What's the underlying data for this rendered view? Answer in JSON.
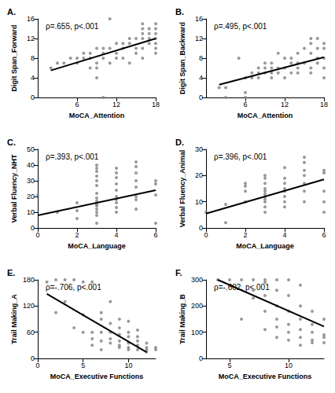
{
  "chart_data": [
    {
      "type": "scatter",
      "title": "A.",
      "annotation": "ρ=.655, p<.001",
      "x_label": "MoCA_Attention",
      "y_label": "Digit Span_Forward",
      "xlim": [
        0,
        18
      ],
      "xticks": [
        6,
        12,
        18
      ],
      "ylim": [
        0,
        16
      ],
      "yticks": [
        0,
        4,
        8,
        12,
        16
      ],
      "grid": false,
      "series": [
        {
          "type": "scatter",
          "color": "#808080",
          "x": [
            2,
            3,
            4,
            5,
            6,
            6,
            7,
            7,
            8,
            8,
            8,
            9,
            9,
            9,
            9,
            10,
            10,
            10,
            10,
            11,
            11,
            11,
            12,
            12,
            12,
            13,
            13,
            13,
            14,
            14,
            14,
            15,
            15,
            15,
            16,
            16,
            16,
            16,
            16,
            16,
            17,
            17,
            17,
            17,
            18,
            18,
            18,
            18,
            18,
            18,
            18
          ],
          "values": [
            6,
            7,
            7,
            8,
            8,
            7,
            8,
            9,
            8,
            6,
            9,
            10,
            6,
            4,
            7,
            9,
            10,
            0,
            8,
            10,
            7,
            16,
            11,
            9,
            8,
            10,
            11,
            8,
            11,
            12,
            7,
            10,
            12,
            9,
            13,
            14,
            15,
            12,
            10,
            8,
            12,
            14,
            11,
            13,
            12,
            13,
            14,
            15,
            9,
            11,
            10
          ]
        },
        {
          "type": "line",
          "color": "#000000",
          "x": [
            2,
            18
          ],
          "values": [
            5.5,
            12
          ]
        }
      ]
    },
    {
      "type": "scatter",
      "title": "B.",
      "annotation": "ρ=.495, p<.001",
      "x_label": "MoCA_Attention",
      "y_label": "Digit Span_Backward",
      "xlim": [
        0,
        18
      ],
      "xticks": [
        6,
        12,
        18
      ],
      "ylim": [
        0,
        16
      ],
      "yticks": [
        0,
        4,
        8,
        12,
        16
      ],
      "grid": false,
      "series": [
        {
          "type": "scatter",
          "color": "#808080",
          "x": [
            2,
            3,
            3,
            5,
            6,
            6,
            6,
            7,
            7,
            8,
            8,
            8,
            9,
            9,
            9,
            10,
            10,
            10,
            10,
            11,
            11,
            11,
            12,
            12,
            12,
            13,
            13,
            13,
            14,
            14,
            14,
            14,
            15,
            15,
            16,
            16,
            16,
            16,
            16,
            17,
            17,
            17,
            17,
            18,
            18,
            18,
            18,
            18
          ],
          "values": [
            2,
            2,
            0,
            8,
            4,
            1,
            0,
            4,
            5,
            5,
            6,
            4,
            5,
            6,
            7,
            6,
            5,
            4,
            7,
            5,
            6,
            9,
            4,
            6,
            8,
            5,
            7,
            8,
            6,
            7,
            5,
            9,
            10,
            7,
            9,
            6,
            12,
            11,
            5,
            10,
            8,
            7,
            12,
            8,
            10,
            11,
            6,
            4
          ]
        },
        {
          "type": "line",
          "color": "#000000",
          "x": [
            2,
            18
          ],
          "values": [
            2.6,
            8.2
          ]
        }
      ]
    },
    {
      "type": "scatter",
      "title": "C.",
      "annotation": "ρ=.393, p<.001",
      "x_label": "MoCA_Language",
      "y_label": "Verbal Fluency_NHT",
      "xlim": [
        0,
        6
      ],
      "xticks": [
        0,
        2,
        4,
        6
      ],
      "ylim": [
        0,
        50
      ],
      "yticks": [
        0,
        10,
        20,
        30,
        40,
        50
      ],
      "grid": false,
      "series": [
        {
          "type": "scatter",
          "color": "#808080",
          "x": [
            0,
            1,
            2,
            2,
            2,
            3,
            3,
            3,
            3,
            3,
            3,
            3,
            3,
            3,
            3,
            3,
            3,
            3,
            3,
            3,
            4,
            4,
            4,
            4,
            4,
            4,
            4,
            4,
            4,
            4,
            5,
            5,
            5,
            5,
            5,
            5,
            5,
            5,
            6,
            6,
            6,
            6
          ],
          "values": [
            21,
            10,
            6,
            16,
            11,
            3,
            8,
            10,
            12,
            14,
            15,
            17,
            19,
            22,
            27,
            30,
            33,
            36,
            38,
            40,
            10,
            13,
            16,
            18,
            20,
            24,
            28,
            32,
            35,
            38,
            12,
            18,
            20,
            26,
            30,
            35,
            39,
            42,
            3,
            21,
            28,
            30
          ]
        },
        {
          "type": "line",
          "color": "#000000",
          "x": [
            0,
            6
          ],
          "values": [
            8,
            24
          ]
        }
      ]
    },
    {
      "type": "scatter",
      "title": "D.",
      "annotation": "ρ=.396, p<.001",
      "x_label": "MoCA_Language",
      "y_label": "Verbal Fluency_Animal",
      "xlim": [
        0,
        6
      ],
      "xticks": [
        0,
        2,
        4,
        6
      ],
      "ylim": [
        0,
        30
      ],
      "yticks": [
        0,
        10,
        20,
        30
      ],
      "grid": false,
      "series": [
        {
          "type": "scatter",
          "color": "#808080",
          "x": [
            0,
            1,
            1,
            2,
            2,
            2,
            2,
            3,
            3,
            3,
            3,
            3,
            3,
            3,
            3,
            3,
            3,
            3,
            4,
            4,
            4,
            4,
            4,
            4,
            4,
            4,
            5,
            5,
            5,
            5,
            5,
            5,
            5,
            6,
            6,
            6,
            6,
            6
          ],
          "values": [
            6,
            2,
            9,
            10,
            14,
            16,
            17,
            6,
            8,
            10,
            11,
            12,
            13,
            14,
            15,
            17,
            19,
            20,
            8,
            10,
            12,
            14,
            15,
            17,
            19,
            23,
            10,
            14,
            17,
            20,
            22,
            25,
            27,
            6,
            10,
            14,
            21,
            22
          ]
        },
        {
          "type": "line",
          "color": "#000000",
          "x": [
            0,
            6
          ],
          "values": [
            5.5,
            18.5
          ]
        }
      ]
    },
    {
      "type": "scatter",
      "title": "E.",
      "annotation": "ρ=-.706, p<.001",
      "x_label": "MoCA_Executive Functions",
      "y_label": "Trail Making_A",
      "xlim": [
        0,
        13
      ],
      "xticks": [
        0,
        5,
        10
      ],
      "ylim": [
        0,
        180
      ],
      "yticks": [
        0,
        60,
        120,
        180
      ],
      "grid": false,
      "series": [
        {
          "type": "scatter",
          "color": "#808080",
          "x": [
            1,
            2,
            2,
            3,
            3,
            4,
            4,
            5,
            5,
            5,
            6,
            6,
            6,
            6,
            7,
            7,
            7,
            7,
            7,
            8,
            8,
            8,
            8,
            8,
            9,
            9,
            9,
            9,
            9,
            9,
            10,
            10,
            10,
            10,
            10,
            10,
            11,
            11,
            11,
            11,
            11,
            12,
            12,
            12,
            12,
            13,
            13
          ],
          "values": [
            175,
            180,
            105,
            130,
            180,
            180,
            70,
            60,
            100,
            175,
            175,
            60,
            45,
            30,
            90,
            105,
            40,
            20,
            60,
            80,
            60,
            45,
            35,
            130,
            70,
            55,
            40,
            30,
            25,
            90,
            60,
            50,
            35,
            25,
            20,
            85,
            50,
            40,
            30,
            20,
            65,
            25,
            20,
            15,
            35,
            25,
            20
          ]
        },
        {
          "type": "line",
          "color": "#000000",
          "x": [
            1,
            12
          ],
          "values": [
            148,
            14
          ]
        }
      ]
    },
    {
      "type": "scatter",
      "title": "F.",
      "annotation": "ρ=-.602, p<.001",
      "x_label": "MoCA_Executive Functions",
      "y_label": "Trail Making_B",
      "xlim": [
        3,
        13
      ],
      "xticks": [
        5,
        10
      ],
      "ylim": [
        0,
        300
      ],
      "yticks": [
        0,
        100,
        200,
        300
      ],
      "grid": false,
      "series": [
        {
          "type": "scatter",
          "color": "#808080",
          "x": [
            4,
            5,
            6,
            6,
            7,
            7,
            7,
            8,
            8,
            8,
            8,
            8,
            9,
            9,
            9,
            9,
            9,
            9,
            10,
            10,
            10,
            10,
            10,
            10,
            11,
            11,
            11,
            11,
            11,
            11,
            12,
            12,
            12,
            12,
            12,
            13,
            13,
            13,
            13
          ],
          "values": [
            300,
            300,
            150,
            300,
            300,
            260,
            230,
            300,
            290,
            240,
            180,
            110,
            300,
            260,
            200,
            150,
            120,
            80,
            300,
            240,
            180,
            130,
            100,
            70,
            280,
            200,
            150,
            110,
            80,
            50,
            180,
            130,
            100,
            70,
            60,
            150,
            90,
            80,
            60
          ]
        },
        {
          "type": "line",
          "color": "#000000",
          "x": [
            4,
            13
          ],
          "values": [
            300,
            122
          ]
        }
      ]
    }
  ]
}
